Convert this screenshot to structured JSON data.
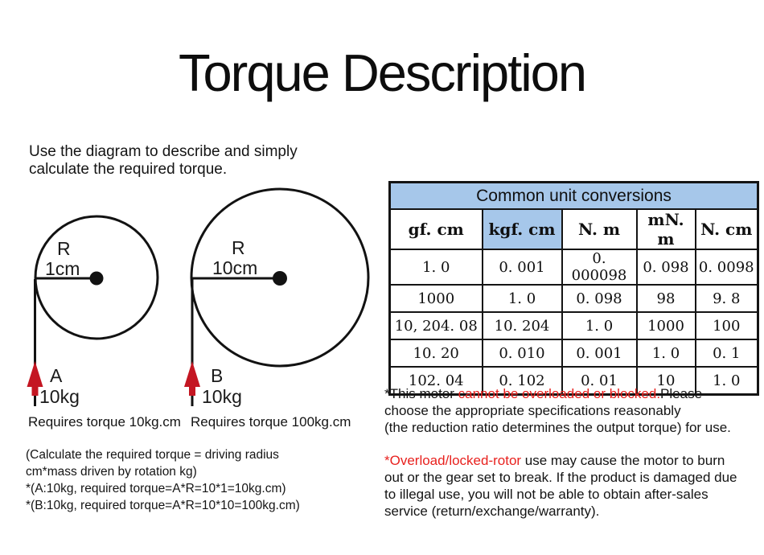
{
  "page": {
    "title": "Torque Description"
  },
  "intro": {
    "text": "Use the diagram to describe and simply\ncalculate the required torque."
  },
  "diagram": {
    "arrow_color": "#c41622",
    "pulley_a": {
      "radius_label": "R",
      "radius_value": "1cm",
      "arrow_label": "A",
      "weight": "10kg",
      "torque_note": "Requires torque 10kg.cm"
    },
    "pulley_b": {
      "radius_label": "R",
      "radius_value": "10cm",
      "arrow_label": "B",
      "weight": "10kg",
      "torque_note": "Requires torque 100kg.cm"
    }
  },
  "calculation": {
    "text": "(Calculate the required torque = driving radius\ncm*mass driven by rotation kg)\n*(A:10kg, required torque=A*R=10*1=10kg.cm)\n*(B:10kg, required torque=A*R=10*10=100kg.cm)"
  },
  "conversion_table": {
    "title": "Common unit conversions",
    "header_bg": "#a6c7ea",
    "highlight_col": 1,
    "columns": [
      "gf. cm",
      "kgf. cm",
      "N. m",
      "mN. m",
      "N. cm"
    ],
    "rows": [
      [
        "1. 0",
        "0. 001",
        "0. 000098",
        "0. 098",
        "0. 0098"
      ],
      [
        "1000",
        "1. 0",
        "0. 098",
        "98",
        "9. 8"
      ],
      [
        "10, 204. 08",
        "10. 204",
        "1. 0",
        "1000",
        "100"
      ],
      [
        "10. 20",
        "0. 010",
        "0. 001",
        "1. 0",
        "0. 1"
      ],
      [
        "102. 04",
        "0. 102",
        "0. 01",
        "10",
        "1. 0"
      ]
    ]
  },
  "warnings": {
    "highlight_color": "#e8211e",
    "note1": {
      "prefix": "*This motor ",
      "highlight": "cannot be overloaded or blocked.",
      "suffix": "Please\nchoose the appropriate specifications reasonably\n(the reduction ratio determines the output torque) for use."
    },
    "note2": {
      "highlight": "*Overload/locked-rotor",
      "suffix": " use may cause the motor to burn\nout or the gear set to break. If the product is damaged due\nto illegal use, you will not be able to obtain after-sales\nservice (return/exchange/warranty)."
    }
  }
}
